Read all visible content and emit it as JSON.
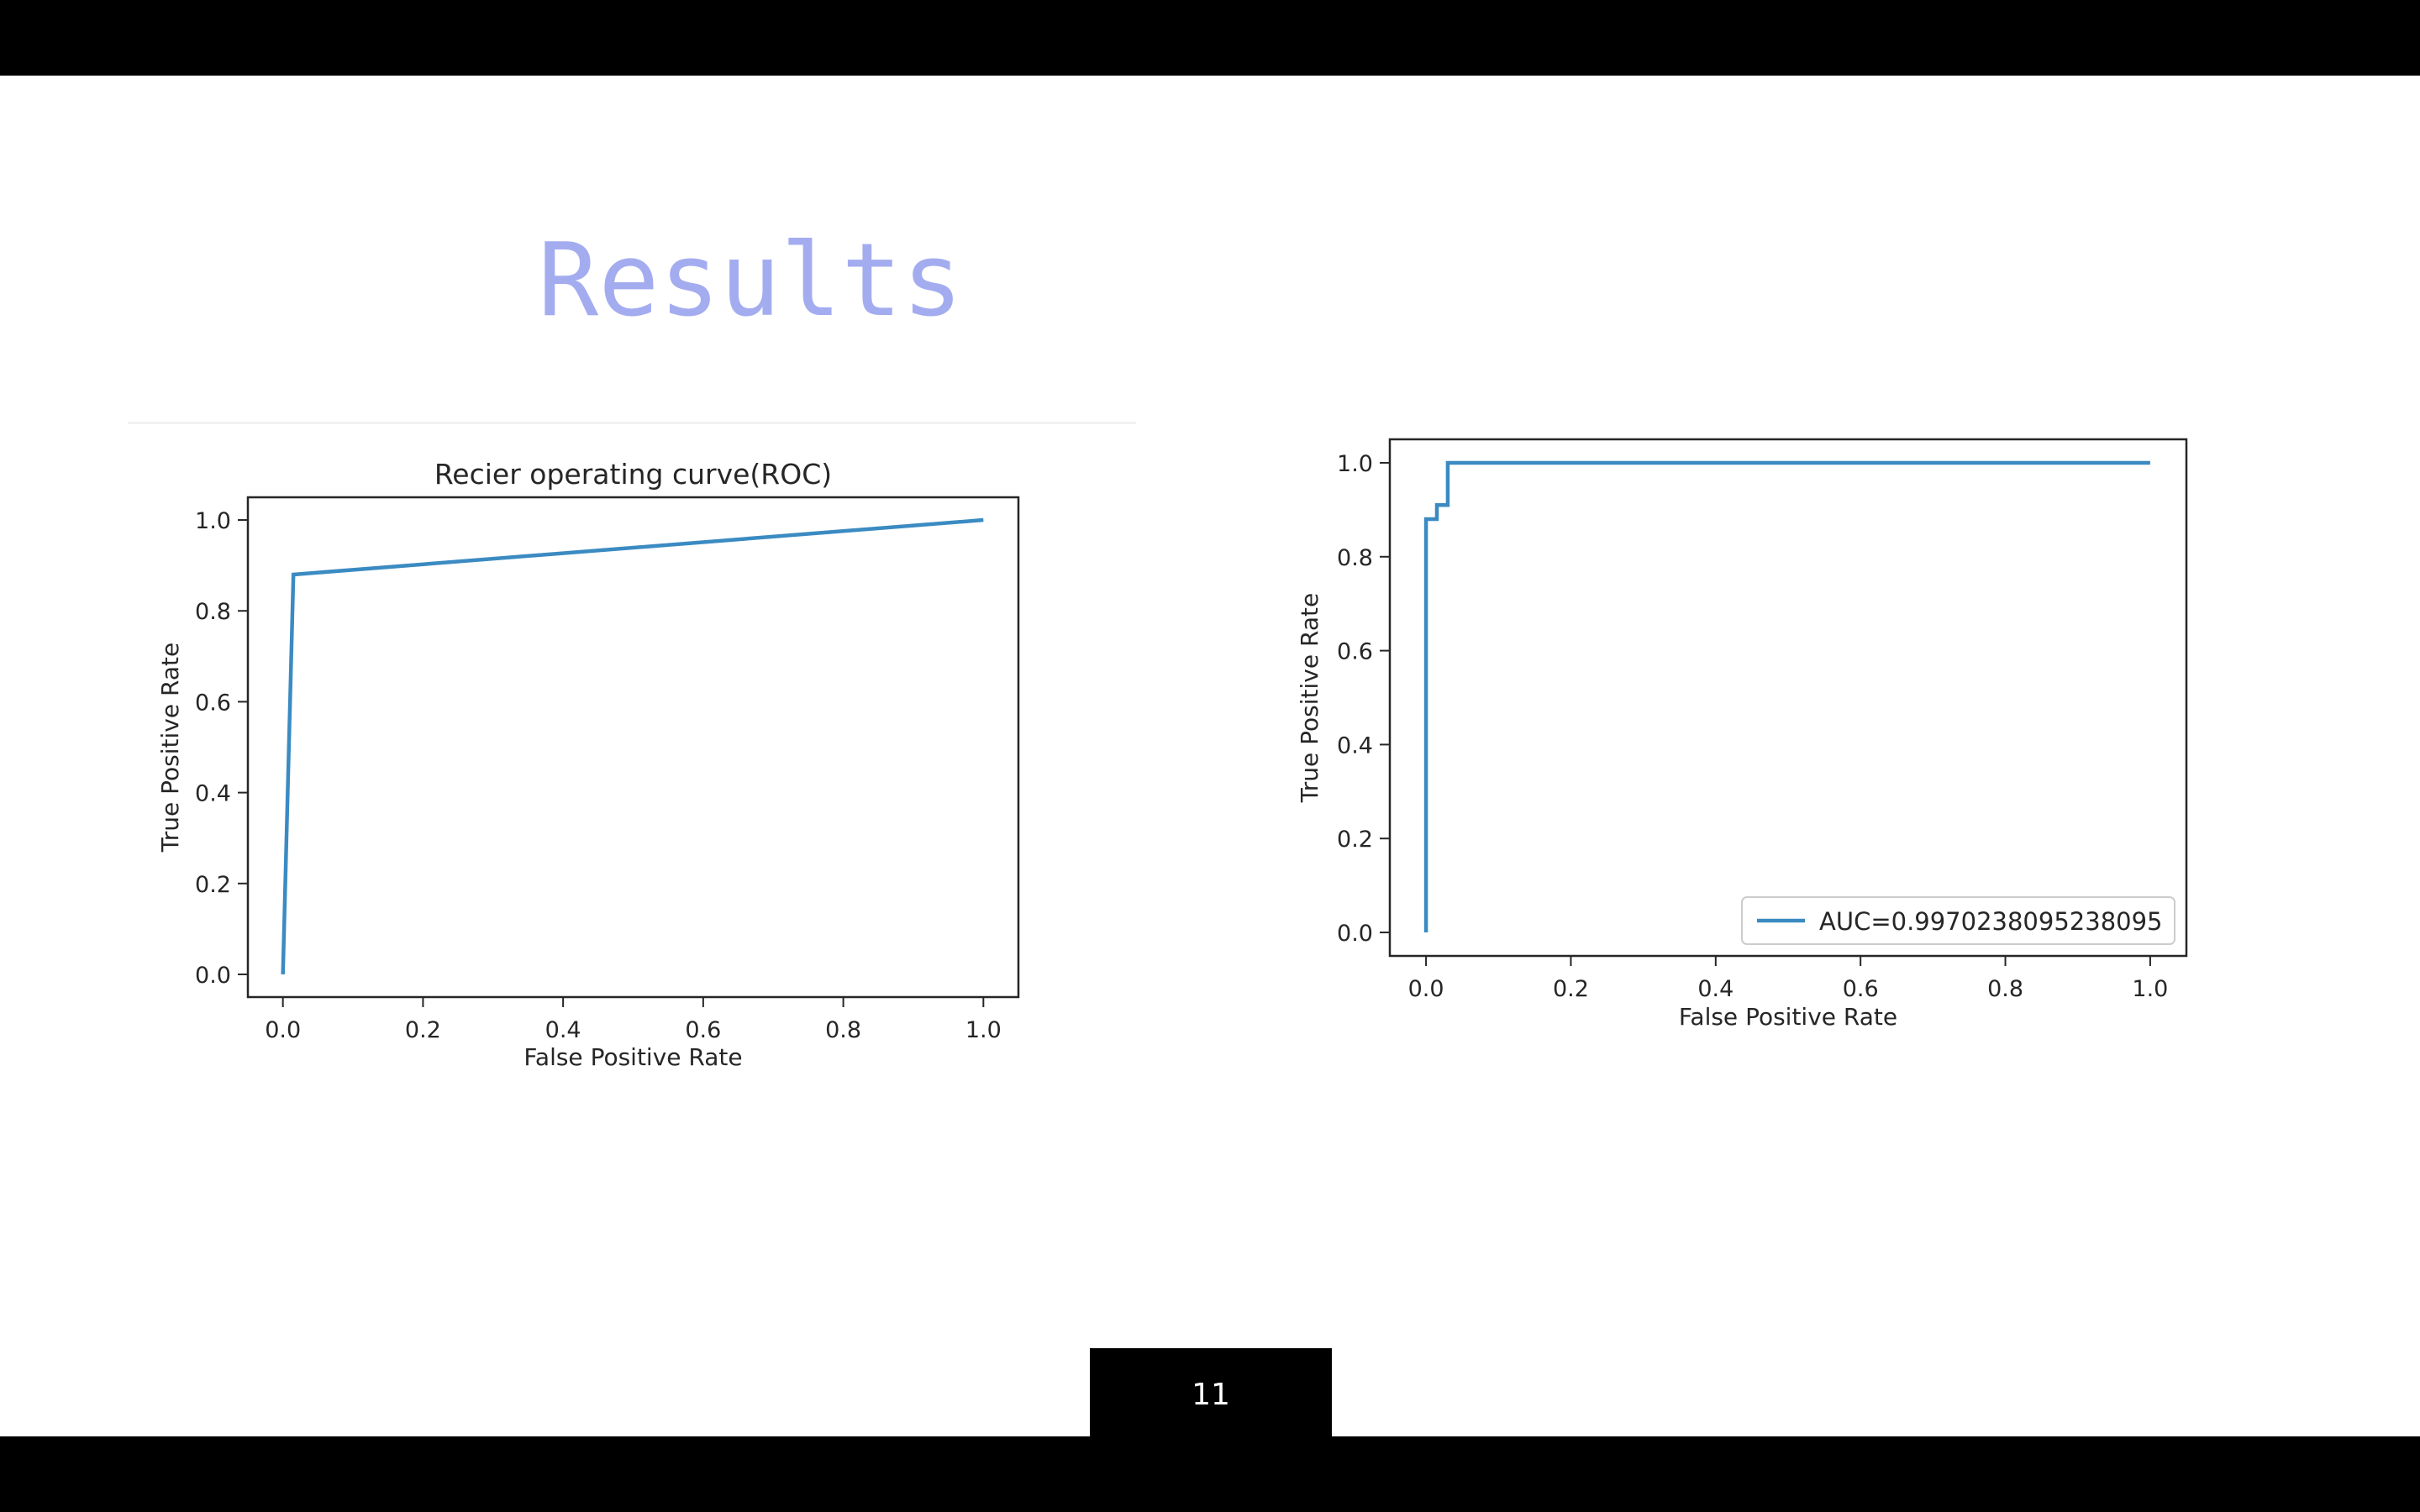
{
  "slide": {
    "title": "Results",
    "page_number": "11"
  },
  "colors": {
    "title": "#a4acf0",
    "series_line": "#3b8bc2",
    "bars": "#000000"
  },
  "chart_data": [
    {
      "type": "line",
      "title": "Recier operating curve(ROC)",
      "xlabel": "False Positive Rate",
      "ylabel": "True Positive Rate",
      "xlim": [
        -0.05,
        1.05
      ],
      "ylim": [
        -0.05,
        1.05
      ],
      "xticks": [
        "0.0",
        "0.2",
        "0.4",
        "0.6",
        "0.8",
        "1.0"
      ],
      "yticks": [
        "0.0",
        "0.2",
        "0.4",
        "0.6",
        "0.8",
        "1.0"
      ],
      "grid": false,
      "series": [
        {
          "x": [
            0.0,
            0.015,
            1.0
          ],
          "y": [
            0.0,
            0.88,
            1.0
          ]
        }
      ]
    },
    {
      "type": "line",
      "title": "",
      "xlabel": "False Positive Rate",
      "ylabel": "True Positive Rate",
      "xlim": [
        -0.05,
        1.05
      ],
      "ylim": [
        -0.05,
        1.05
      ],
      "xticks": [
        "0.0",
        "0.2",
        "0.4",
        "0.6",
        "0.8",
        "1.0"
      ],
      "yticks": [
        "0.0",
        "0.2",
        "0.4",
        "0.6",
        "0.8",
        "1.0"
      ],
      "grid": false,
      "legend": "bottom-right",
      "series": [
        {
          "name": "AUC=0.9970238095238095",
          "x": [
            0.0,
            0.0,
            0.0,
            0.015,
            0.015,
            0.03,
            0.03,
            1.0
          ],
          "y": [
            0.0,
            0.88,
            0.88,
            0.88,
            0.91,
            0.91,
            1.0,
            1.0
          ]
        }
      ]
    }
  ]
}
